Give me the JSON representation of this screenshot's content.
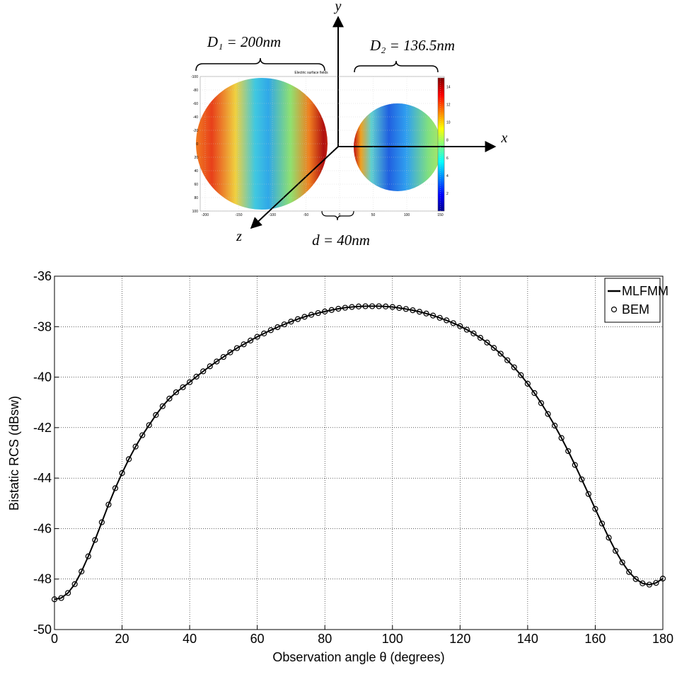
{
  "diagram": {
    "axis_labels": {
      "x": "x",
      "y": "y",
      "z": "z"
    },
    "dimensions": {
      "D1": "D₁ = 200nm",
      "D2": "D₂ = 136.5nm",
      "d": "d = 40nm"
    },
    "heatmap": {
      "title": "Electric surface fields",
      "xticks": [
        -200,
        -150,
        -100,
        -50,
        0,
        50,
        100,
        150
      ],
      "yticks": [
        -100,
        -80,
        -60,
        -40,
        -20,
        0,
        20,
        40,
        60,
        80,
        100
      ],
      "colorbar_ticks": [
        2,
        4,
        6,
        8,
        10,
        12,
        14
      ]
    }
  },
  "chart_data": {
    "type": "line",
    "xlabel": "Observation angle θ (degrees)",
    "ylabel": "Bistatic RCS (dBsw)",
    "x": [
      0,
      2,
      4,
      6,
      8,
      10,
      12,
      14,
      16,
      18,
      20,
      22,
      24,
      26,
      28,
      30,
      32,
      34,
      36,
      38,
      40,
      42,
      44,
      46,
      48,
      50,
      52,
      54,
      56,
      58,
      60,
      62,
      64,
      66,
      68,
      70,
      72,
      74,
      76,
      78,
      80,
      82,
      84,
      86,
      88,
      90,
      92,
      94,
      96,
      98,
      100,
      102,
      104,
      106,
      108,
      110,
      112,
      114,
      116,
      118,
      120,
      122,
      124,
      126,
      128,
      130,
      132,
      134,
      136,
      138,
      140,
      142,
      144,
      146,
      148,
      150,
      152,
      154,
      156,
      158,
      160,
      162,
      164,
      166,
      168,
      170,
      172,
      174,
      176,
      178,
      180
    ],
    "series": [
      {
        "name": "MLFMM",
        "color": "#000000",
        "style": "line",
        "values": [
          -48.8,
          -48.75,
          -48.55,
          -48.2,
          -47.7,
          -47.1,
          -46.45,
          -45.75,
          -45.05,
          -44.4,
          -43.8,
          -43.25,
          -42.75,
          -42.3,
          -41.9,
          -41.5,
          -41.15,
          -40.85,
          -40.6,
          -40.4,
          -40.2,
          -39.98,
          -39.77,
          -39.57,
          -39.38,
          -39.2,
          -39.02,
          -38.85,
          -38.7,
          -38.55,
          -38.4,
          -38.27,
          -38.14,
          -38.02,
          -37.91,
          -37.8,
          -37.7,
          -37.61,
          -37.53,
          -37.46,
          -37.4,
          -37.34,
          -37.29,
          -37.25,
          -37.22,
          -37.2,
          -37.19,
          -37.19,
          -37.19,
          -37.2,
          -37.22,
          -37.26,
          -37.3,
          -37.35,
          -37.41,
          -37.48,
          -37.56,
          -37.65,
          -37.75,
          -37.86,
          -37.98,
          -38.12,
          -38.27,
          -38.44,
          -38.63,
          -38.84,
          -39.07,
          -39.33,
          -39.61,
          -39.92,
          -40.26,
          -40.63,
          -41.03,
          -41.46,
          -41.92,
          -42.41,
          -42.93,
          -43.48,
          -44.05,
          -44.63,
          -45.22,
          -45.8,
          -46.36,
          -46.88,
          -47.34,
          -47.72,
          -48.0,
          -48.17,
          -48.22,
          -48.15,
          -47.98
        ]
      },
      {
        "name": "BEM",
        "color": "#000000",
        "style": "marker",
        "values": [
          -48.8,
          -48.75,
          -48.55,
          -48.2,
          -47.7,
          -47.1,
          -46.45,
          -45.75,
          -45.05,
          -44.4,
          -43.8,
          -43.25,
          -42.75,
          -42.3,
          -41.9,
          -41.5,
          -41.15,
          -40.85,
          -40.6,
          -40.4,
          -40.2,
          -39.98,
          -39.77,
          -39.57,
          -39.38,
          -39.2,
          -39.02,
          -38.85,
          -38.7,
          -38.55,
          -38.4,
          -38.27,
          -38.14,
          -38.02,
          -37.91,
          -37.8,
          -37.7,
          -37.61,
          -37.53,
          -37.46,
          -37.4,
          -37.34,
          -37.29,
          -37.25,
          -37.22,
          -37.2,
          -37.19,
          -37.19,
          -37.19,
          -37.2,
          -37.22,
          -37.26,
          -37.3,
          -37.35,
          -37.41,
          -37.48,
          -37.56,
          -37.65,
          -37.75,
          -37.86,
          -37.98,
          -38.12,
          -38.27,
          -38.44,
          -38.63,
          -38.84,
          -39.07,
          -39.33,
          -39.61,
          -39.92,
          -40.26,
          -40.63,
          -41.03,
          -41.46,
          -41.92,
          -42.41,
          -42.93,
          -43.48,
          -44.05,
          -44.63,
          -45.22,
          -45.8,
          -46.36,
          -46.88,
          -47.34,
          -47.72,
          -48.0,
          -48.17,
          -48.22,
          -48.15,
          -47.98
        ]
      }
    ],
    "xlim": [
      0,
      180
    ],
    "xticks": [
      0,
      20,
      40,
      60,
      80,
      100,
      120,
      140,
      160,
      180
    ],
    "ylim": [
      -50,
      -36
    ],
    "yticks": [
      -50,
      -48,
      -46,
      -44,
      -42,
      -40,
      -38,
      -36
    ],
    "grid": true,
    "legend": "upper-right"
  }
}
